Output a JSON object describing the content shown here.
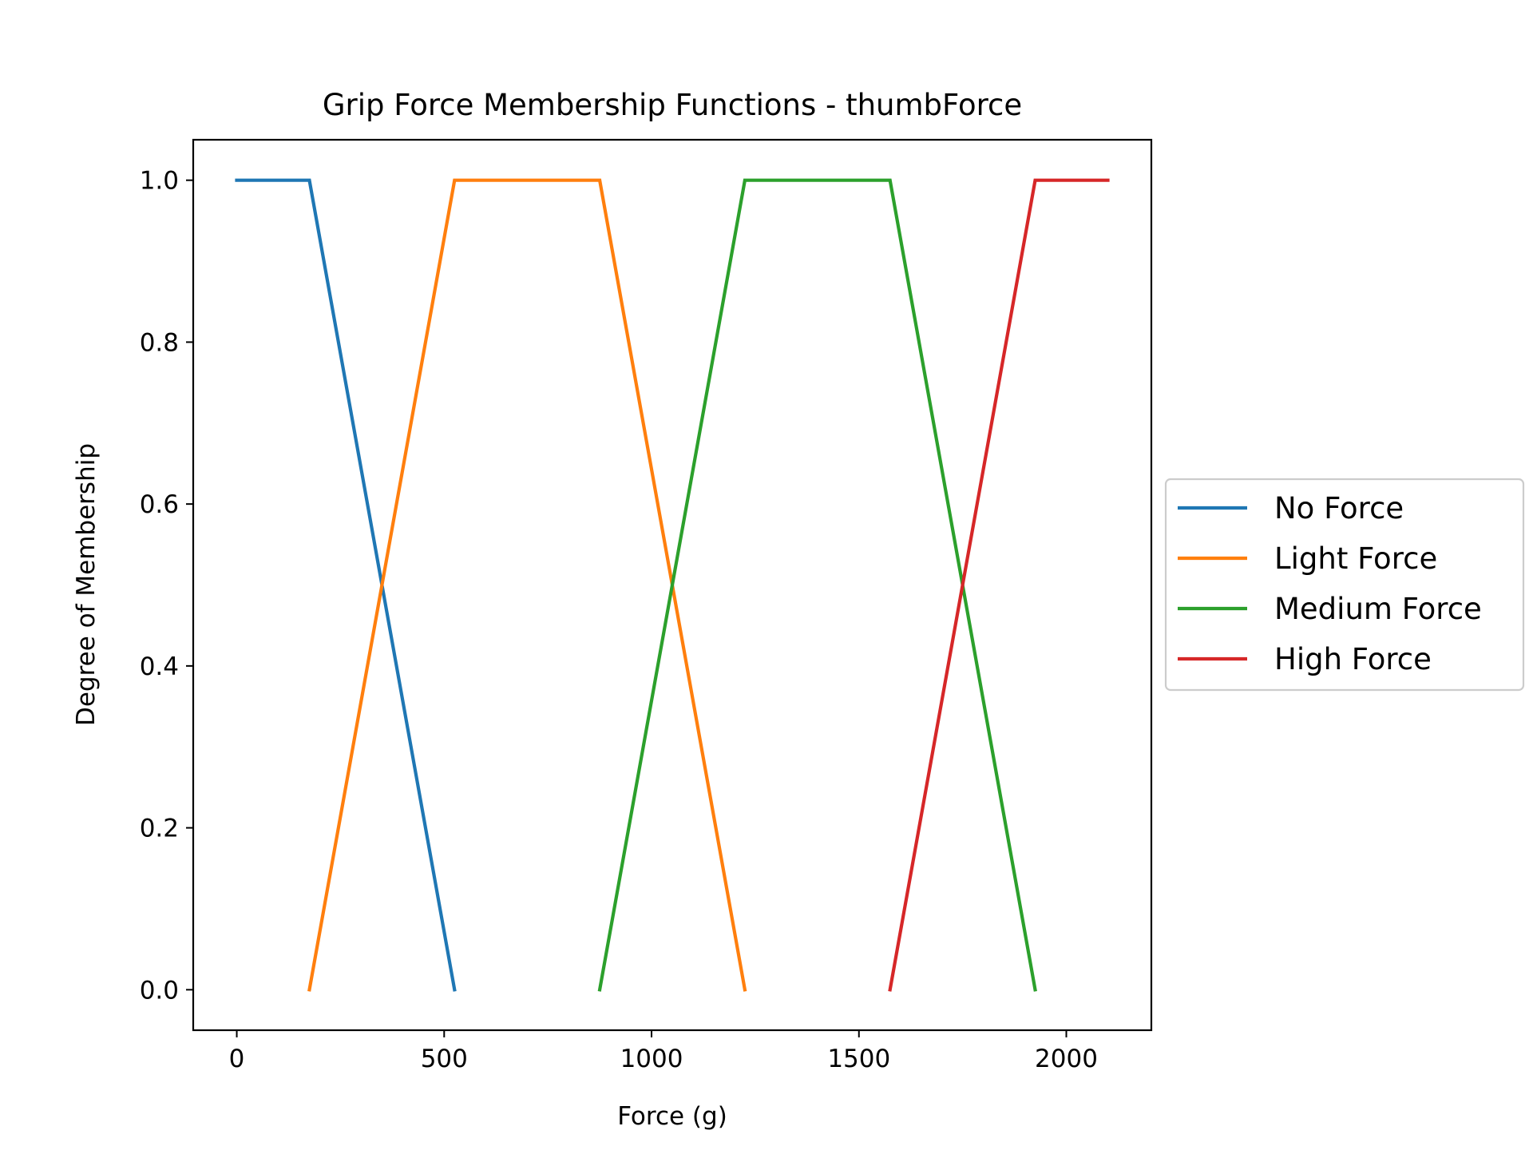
{
  "chart_data": {
    "type": "line",
    "title": "Grip Force Membership Functions - thumbForce",
    "xlabel": "Force (g)",
    "ylabel": "Degree of Membership",
    "xlim": [
      -105,
      2205
    ],
    "ylim": [
      -0.05,
      1.05
    ],
    "xticks": [
      0,
      500,
      1000,
      1500,
      2000
    ],
    "xtick_labels": [
      "0",
      "500",
      "1000",
      "1500",
      "2000"
    ],
    "yticks": [
      0.0,
      0.2,
      0.4,
      0.6,
      0.8,
      1.0
    ],
    "ytick_labels": [
      "0.0",
      "0.2",
      "0.4",
      "0.6",
      "0.8",
      "1.0"
    ],
    "grid": false,
    "legend_position": "outside-right",
    "series": [
      {
        "name": "No Force",
        "color": "#1f77b4",
        "x": [
          0,
          175,
          525
        ],
        "y": [
          1,
          1,
          0
        ]
      },
      {
        "name": "Light Force",
        "color": "#ff7f0e",
        "x": [
          175,
          525,
          875,
          1225
        ],
        "y": [
          0,
          1,
          1,
          0
        ]
      },
      {
        "name": "Medium Force",
        "color": "#2ca02c",
        "x": [
          875,
          1225,
          1575,
          1925
        ],
        "y": [
          0,
          1,
          1,
          0
        ]
      },
      {
        "name": "High Force",
        "color": "#d62728",
        "x": [
          1575,
          1925,
          2100
        ],
        "y": [
          0,
          1,
          1
        ]
      }
    ]
  }
}
